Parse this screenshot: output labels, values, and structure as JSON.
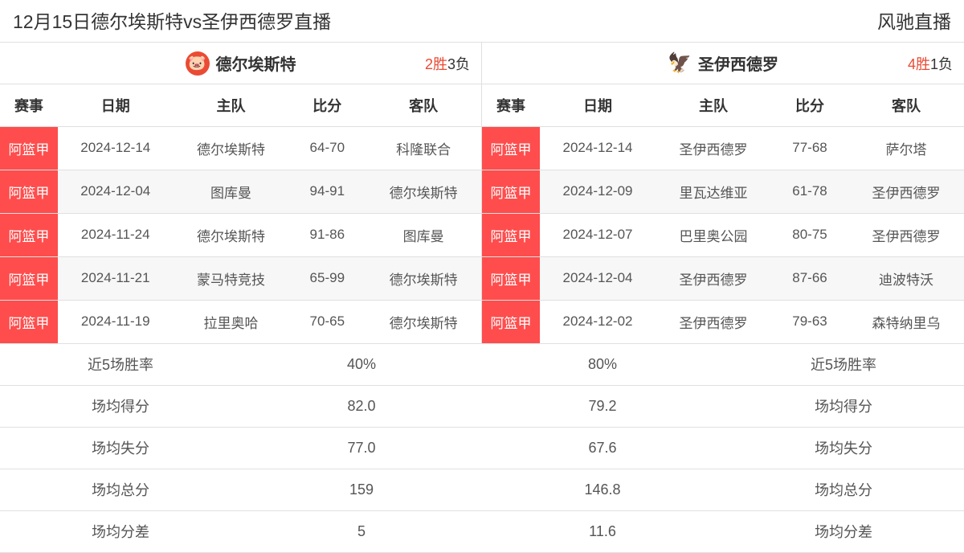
{
  "header": {
    "title": "12月15日德尔埃斯特vs圣伊西德罗直播",
    "site": "风驰直播"
  },
  "teamA": {
    "name": "德尔埃斯特",
    "wins": "2胜",
    "losses": "3负",
    "columns": {
      "league": "赛事",
      "date": "日期",
      "home": "主队",
      "score": "比分",
      "away": "客队"
    },
    "rows": [
      {
        "league": "阿篮甲",
        "date": "2024-12-14",
        "home": "德尔埃斯特",
        "score": "64-70",
        "away": "科隆联合"
      },
      {
        "league": "阿篮甲",
        "date": "2024-12-04",
        "home": "图库曼",
        "score": "94-91",
        "away": "德尔埃斯特"
      },
      {
        "league": "阿篮甲",
        "date": "2024-11-24",
        "home": "德尔埃斯特",
        "score": "91-86",
        "away": "图库曼"
      },
      {
        "league": "阿篮甲",
        "date": "2024-11-21",
        "home": "蒙马特竞技",
        "score": "65-99",
        "away": "德尔埃斯特"
      },
      {
        "league": "阿篮甲",
        "date": "2024-11-19",
        "home": "拉里奥哈",
        "score": "70-65",
        "away": "德尔埃斯特"
      }
    ],
    "stats": {
      "winrate_label": "近5场胜率",
      "winrate_value": "40%",
      "points_for_label": "场均得分",
      "points_for_value": "82.0",
      "points_against_label": "场均失分",
      "points_against_value": "77.0",
      "total_label": "场均总分",
      "total_value": "159",
      "diff_label": "场均分差",
      "diff_value": "5"
    }
  },
  "teamB": {
    "name": "圣伊西德罗",
    "wins": "4胜",
    "losses": "1负",
    "columns": {
      "league": "赛事",
      "date": "日期",
      "home": "主队",
      "score": "比分",
      "away": "客队"
    },
    "rows": [
      {
        "league": "阿篮甲",
        "date": "2024-12-14",
        "home": "圣伊西德罗",
        "score": "77-68",
        "away": "萨尔塔"
      },
      {
        "league": "阿篮甲",
        "date": "2024-12-09",
        "home": "里瓦达维亚",
        "score": "61-78",
        "away": "圣伊西德罗"
      },
      {
        "league": "阿篮甲",
        "date": "2024-12-07",
        "home": "巴里奥公园",
        "score": "80-75",
        "away": "圣伊西德罗"
      },
      {
        "league": "阿篮甲",
        "date": "2024-12-04",
        "home": "圣伊西德罗",
        "score": "87-66",
        "away": "迪波特沃"
      },
      {
        "league": "阿篮甲",
        "date": "2024-12-02",
        "home": "圣伊西德罗",
        "score": "79-63",
        "away": "森特纳里乌"
      }
    ],
    "stats": {
      "winrate_label": "近5场胜率",
      "winrate_value": "80%",
      "points_for_label": "场均得分",
      "points_for_value": "79.2",
      "points_against_label": "场均失分",
      "points_against_value": "67.6",
      "total_label": "场均总分",
      "total_value": "146.8",
      "diff_label": "场均分差",
      "diff_value": "11.6"
    }
  },
  "colors": {
    "accent_red": "#ff4d4d",
    "text_dark": "#333333",
    "text_gray": "#555555",
    "border": "#e0e0e0",
    "alt_row": "#f7f7f7",
    "background": "#ffffff"
  }
}
